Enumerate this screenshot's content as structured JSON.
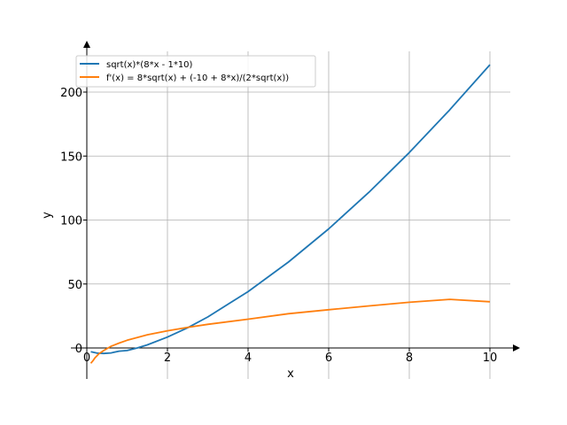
{
  "chart_data": {
    "type": "line",
    "xlabel": "x",
    "ylabel": "y",
    "xlim": [
      -0.2,
      10.7
    ],
    "ylim": [
      -24,
      240
    ],
    "x_ticks": [
      0,
      2,
      4,
      6,
      8,
      10
    ],
    "y_ticks": [
      0,
      50,
      100,
      150,
      200
    ],
    "x_tick_labels": [
      "0",
      "2",
      "4",
      "6",
      "8",
      "10"
    ],
    "y_tick_labels": [
      "0",
      "50",
      "100",
      "150",
      "200"
    ],
    "grid": true,
    "legend_position": "top-left",
    "series": [
      {
        "name": "sqrt(x)*(8*x - 1*10)",
        "color": "#1f77b4",
        "x": [
          0.1,
          0.25,
          0.42,
          0.6,
          0.8,
          1,
          1.25,
          1.5,
          2,
          2.5,
          3,
          4,
          5,
          6,
          7,
          8,
          9,
          10
        ],
        "y": [
          -2.9,
          -4,
          -4.3,
          -3.9,
          -2.5,
          -2,
          0,
          2.4,
          8.5,
          15.8,
          24.2,
          44,
          67.1,
          93.1,
          121.7,
          152.7,
          186,
          221.4
        ]
      },
      {
        "name": "f'(x) = 8*sqrt(x) + (-10 + 8*x)/(2*sqrt(x))",
        "color": "#ff7f0e",
        "x": [
          0.1,
          0.15,
          0.2,
          0.3,
          0.42,
          0.6,
          0.8,
          1,
          1.5,
          2,
          2.5,
          3,
          4,
          5,
          6,
          7,
          8,
          9,
          10
        ],
        "y": [
          -12,
          -10.1,
          -7.8,
          -4.5,
          -2,
          1.3,
          3.8,
          6,
          10.3,
          13.4,
          16.1,
          18.5,
          22.5,
          26.8,
          29.9,
          32.9,
          35.7,
          38,
          36.1
        ]
      }
    ]
  }
}
